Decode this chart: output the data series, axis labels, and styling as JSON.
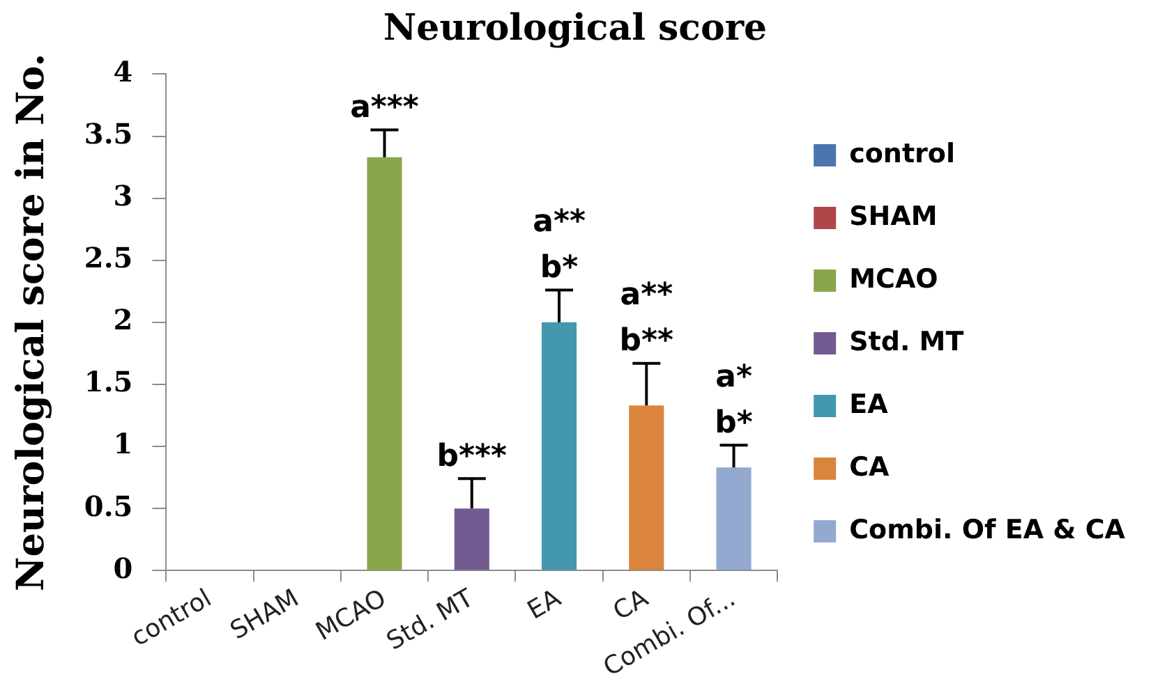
{
  "chart_data": {
    "type": "bar",
    "title": "Neurological score",
    "ylabel": "Neurological score in No.",
    "categories": [
      "control",
      "SHAM",
      "MCAO",
      "Std. MT",
      "EA",
      "CA",
      "Combi. Of..."
    ],
    "series": [
      {
        "name": "control",
        "color": "#4a76ad",
        "values": [
          0,
          null,
          null,
          null,
          null,
          null,
          null
        ]
      },
      {
        "name": "SHAM",
        "color": "#b0464a",
        "values": [
          null,
          0,
          null,
          null,
          null,
          null,
          null
        ]
      },
      {
        "name": "MCAO",
        "color": "#8aa64b",
        "values": [
          null,
          null,
          3.33,
          null,
          null,
          null,
          null
        ],
        "errors": [
          null,
          null,
          [
            3.33,
            3.55
          ],
          null,
          null,
          null,
          null
        ]
      },
      {
        "name": "Std. MT",
        "color": "#725a91",
        "values": [
          null,
          null,
          null,
          0.5,
          null,
          null,
          null
        ],
        "errors": [
          null,
          null,
          null,
          [
            0.5,
            0.74
          ],
          null,
          null,
          null
        ]
      },
      {
        "name": "EA",
        "color": "#4398b0",
        "values": [
          null,
          null,
          null,
          null,
          2,
          null,
          null
        ],
        "errors": [
          null,
          null,
          null,
          null,
          [
            2,
            2.26
          ],
          null,
          null
        ]
      },
      {
        "name": "CA",
        "color": "#db843d",
        "values": [
          null,
          null,
          null,
          null,
          null,
          1.33,
          null
        ],
        "errors": [
          null,
          null,
          null,
          null,
          null,
          [
            1.33,
            1.67
          ],
          null
        ]
      },
      {
        "name": "Combi. Of EA & CA",
        "color": "#94a9d0",
        "values": [
          null,
          null,
          null,
          null,
          null,
          null,
          0.83
        ],
        "errors": [
          null,
          null,
          null,
          null,
          null,
          null,
          [
            0.83,
            1.01
          ]
        ]
      }
    ],
    "ylim": [
      0,
      4
    ],
    "yticks": [
      0,
      0.5,
      1,
      1.5,
      2,
      2.5,
      3,
      3.5,
      4
    ],
    "legend": "right",
    "annotations": [
      {
        "text": "a***",
        "x": "MCAO",
        "y": 3.55
      },
      {
        "text": "b***",
        "x": "Std. MT",
        "y": 0.74
      },
      {
        "text": "a**",
        "x": "EA",
        "y": 2.26
      },
      {
        "text": "b*",
        "x": "EA",
        "y": 2.26
      },
      {
        "text": "a**",
        "x": "CA",
        "y": 1.67
      },
      {
        "text": "b**",
        "x": "CA",
        "y": 1.67
      },
      {
        "text": "a*",
        "x": "Combi. Of...",
        "y": 1.01
      },
      {
        "text": "b*",
        "x": "Combi. Of...",
        "y": 1.01
      }
    ]
  }
}
